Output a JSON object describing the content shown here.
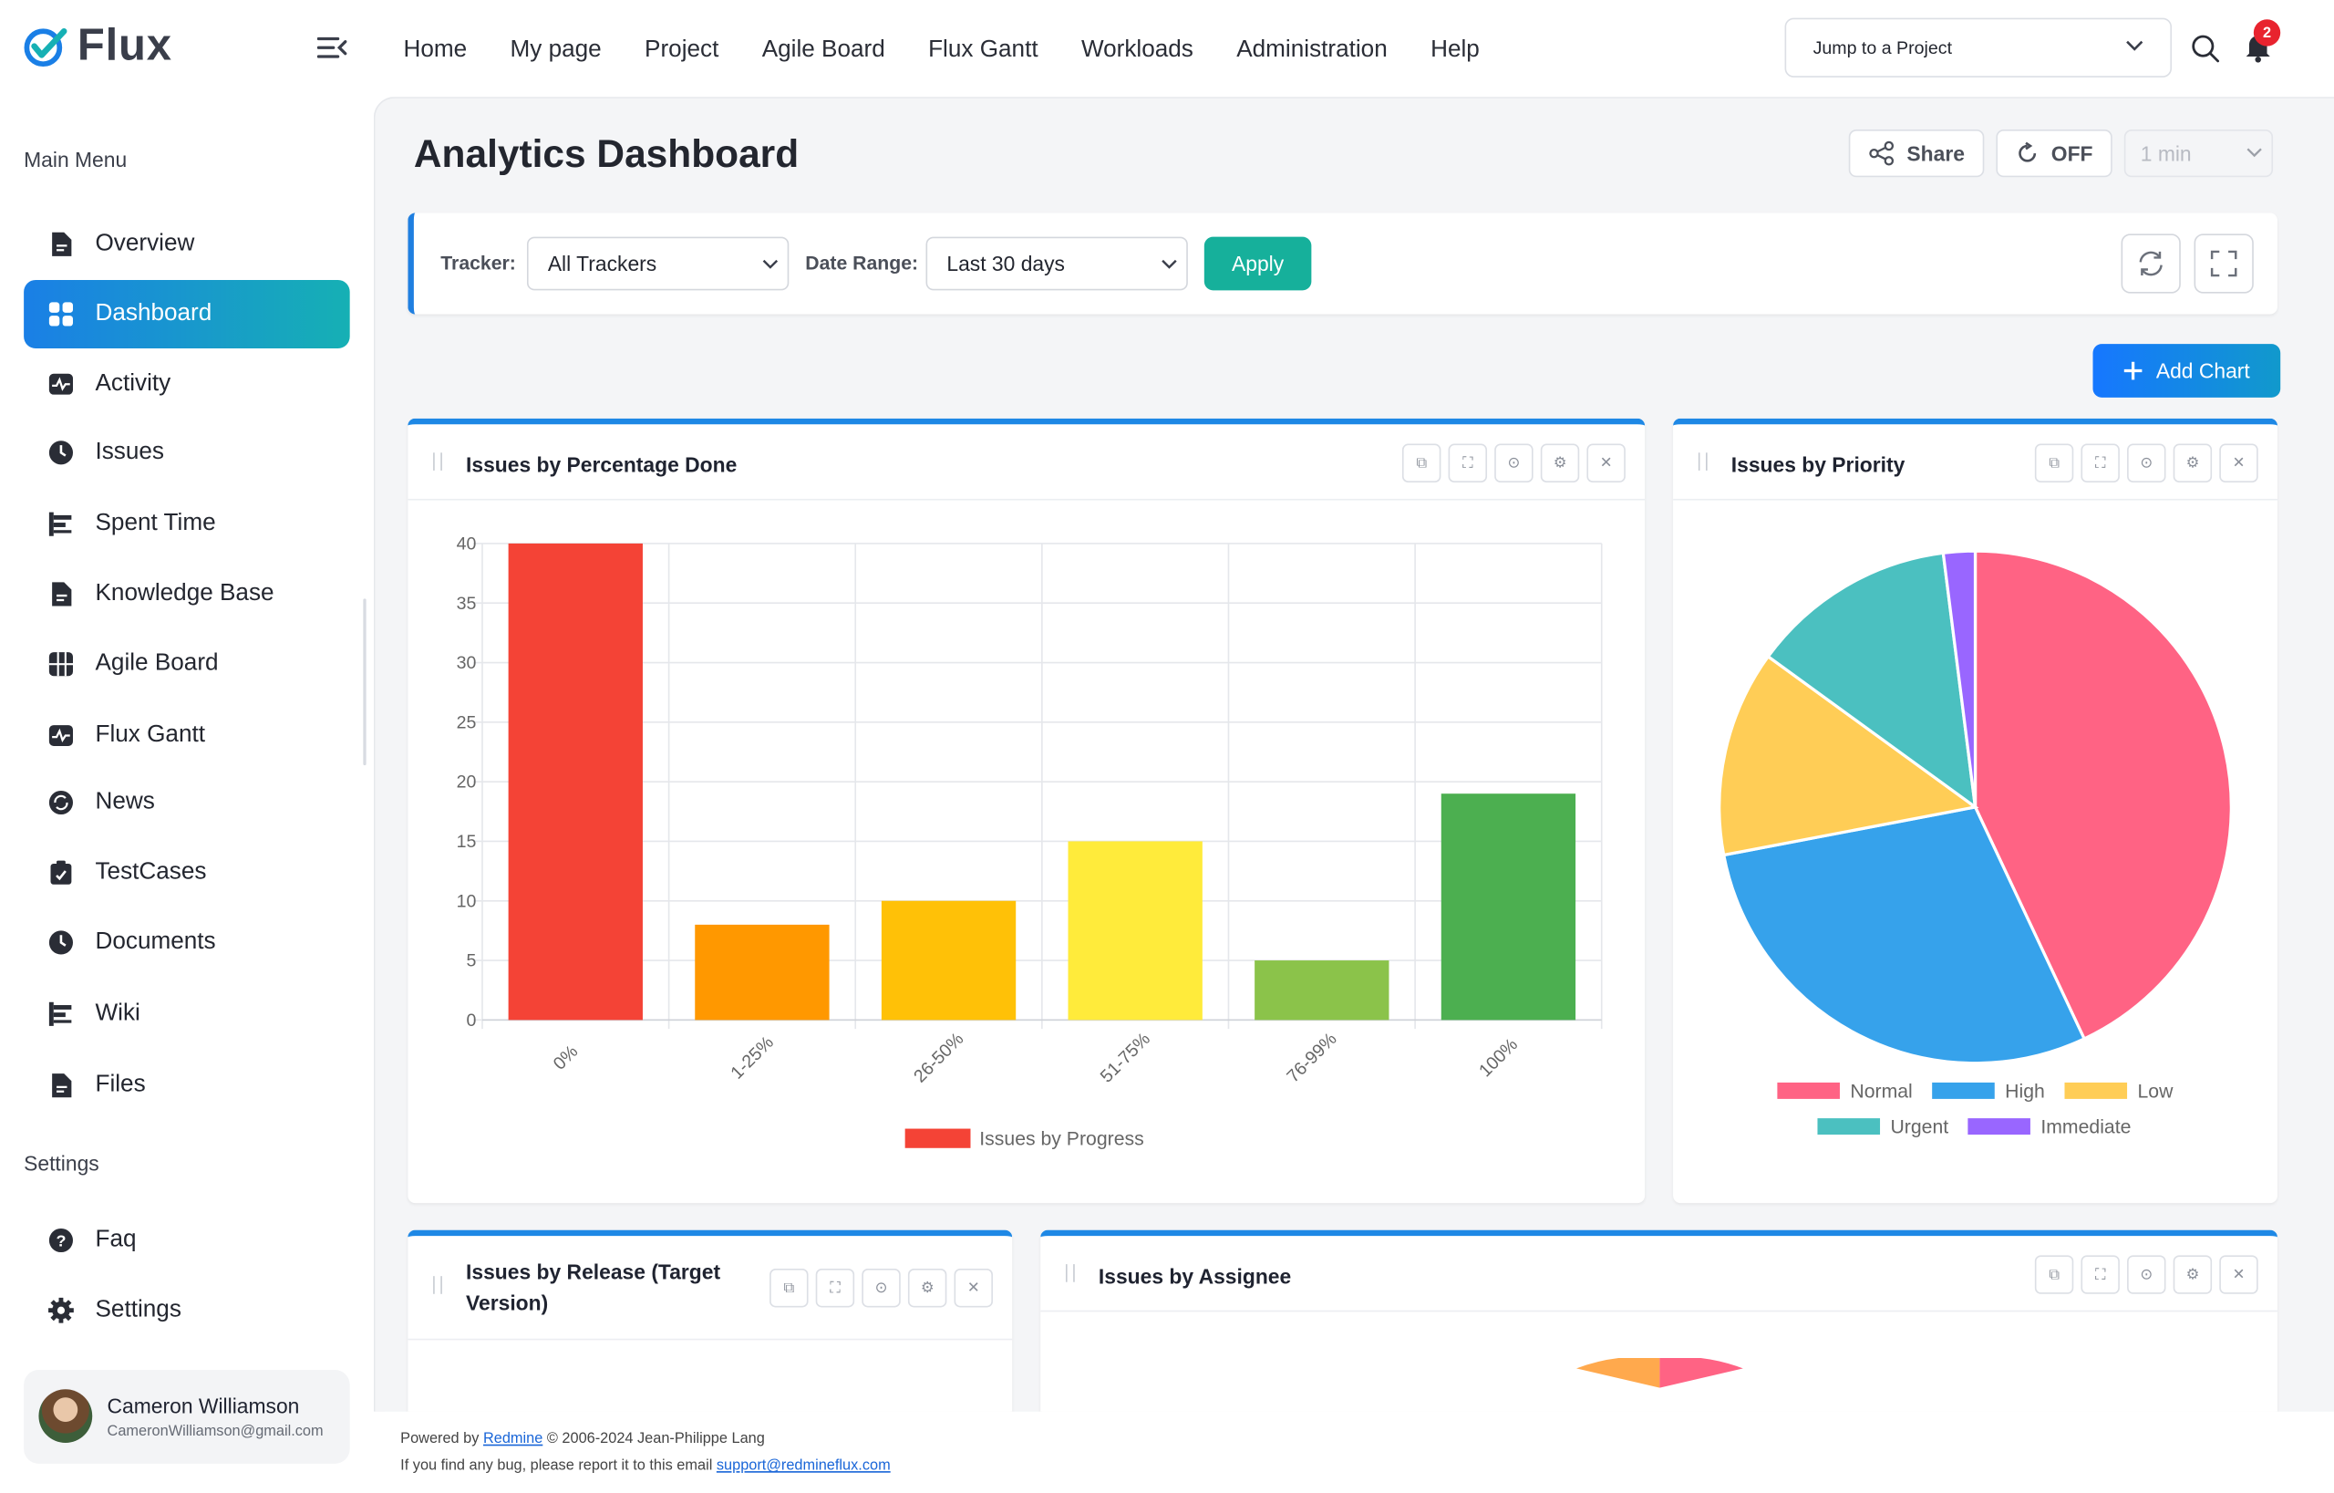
{
  "app": {
    "brand": "Flux",
    "accent": "#1a7fe6",
    "teal": "#16b0b4"
  },
  "topnav": [
    "Home",
    "My page",
    "Project",
    "Agile Board",
    "Flux Gantt",
    "Workloads",
    "Administration",
    "Help"
  ],
  "jump": {
    "label": "Jump to a Project"
  },
  "notifications": {
    "count": "2"
  },
  "sidebar": {
    "main_title": "Main Menu",
    "items": [
      {
        "label": "Overview",
        "icon": "document-icon"
      },
      {
        "label": "Dashboard",
        "icon": "grid-icon",
        "active": true
      },
      {
        "label": "Activity",
        "icon": "pulse-icon"
      },
      {
        "label": "Issues",
        "icon": "clock-icon"
      },
      {
        "label": "Spent Time",
        "icon": "bars-icon"
      },
      {
        "label": "Knowledge Base",
        "icon": "document-icon"
      },
      {
        "label": "Agile Board",
        "icon": "board-icon"
      },
      {
        "label": "Flux Gantt",
        "icon": "pulse-icon"
      },
      {
        "label": "News",
        "icon": "refresh-icon"
      },
      {
        "label": "TestCases",
        "icon": "clipboard-icon"
      },
      {
        "label": "Documents",
        "icon": "clock-icon"
      },
      {
        "label": "Wiki",
        "icon": "bars-icon"
      },
      {
        "label": "Files",
        "icon": "document-icon"
      }
    ],
    "settings_title": "Settings",
    "settings_items": [
      {
        "label": "Faq",
        "icon": "help-icon"
      },
      {
        "label": "Settings",
        "icon": "gear-icon"
      }
    ],
    "user": {
      "name": "Cameron Williamson",
      "email": "CameronWilliamson@gmail.com"
    }
  },
  "page": {
    "title": "Analytics Dashboard",
    "share_label": "Share",
    "refresh_label": "OFF",
    "interval": "1 min",
    "filter": {
      "tracker_label": "Tracker:",
      "tracker_value": "All Trackers",
      "date_label": "Date Range:",
      "date_value": "Last 30 days",
      "apply_label": "Apply"
    },
    "add_chart_label": "Add Chart",
    "cards": {
      "percent_title": "Issues by Percentage Done",
      "priority_title": "Issues by Priority",
      "release_title": "Issues by Release (Target Version)",
      "assignee_title": "Issues by Assignee"
    }
  },
  "chart_data": [
    {
      "type": "bar",
      "categories": [
        "0%",
        "1-25%",
        "26-50%",
        "51-75%",
        "76-99%",
        "100%"
      ],
      "series": [
        {
          "name": "Issues by Progress",
          "values": [
            40,
            8,
            10,
            15,
            5,
            19
          ]
        }
      ],
      "colors": [
        "#f44336",
        "#ff9800",
        "#ffc107",
        "#ffeb3b",
        "#8bc34a",
        "#4caf50"
      ],
      "ylim": [
        0,
        40
      ],
      "yticks": [
        0,
        5,
        10,
        15,
        20,
        25,
        30,
        35,
        40
      ],
      "grid": true,
      "legend": "bottom"
    },
    {
      "type": "pie",
      "labels": [
        "Normal",
        "High",
        "Low",
        "Urgent",
        "Immediate"
      ],
      "values": [
        43,
        29,
        13,
        13,
        2
      ],
      "colors": [
        "#ff6384",
        "#36a2eb",
        "#ffcd56",
        "#4bc0c0",
        "#9966ff"
      ],
      "legend": "bottom"
    }
  ],
  "footer": {
    "line1_prefix": "Powered by ",
    "line1_link": "Redmine",
    "line1_suffix": " © 2006-2024 Jean-Philippe Lang",
    "line2_prefix": "If you find any bug, please report it to this email ",
    "line2_link": "support@redmineflux.com"
  }
}
